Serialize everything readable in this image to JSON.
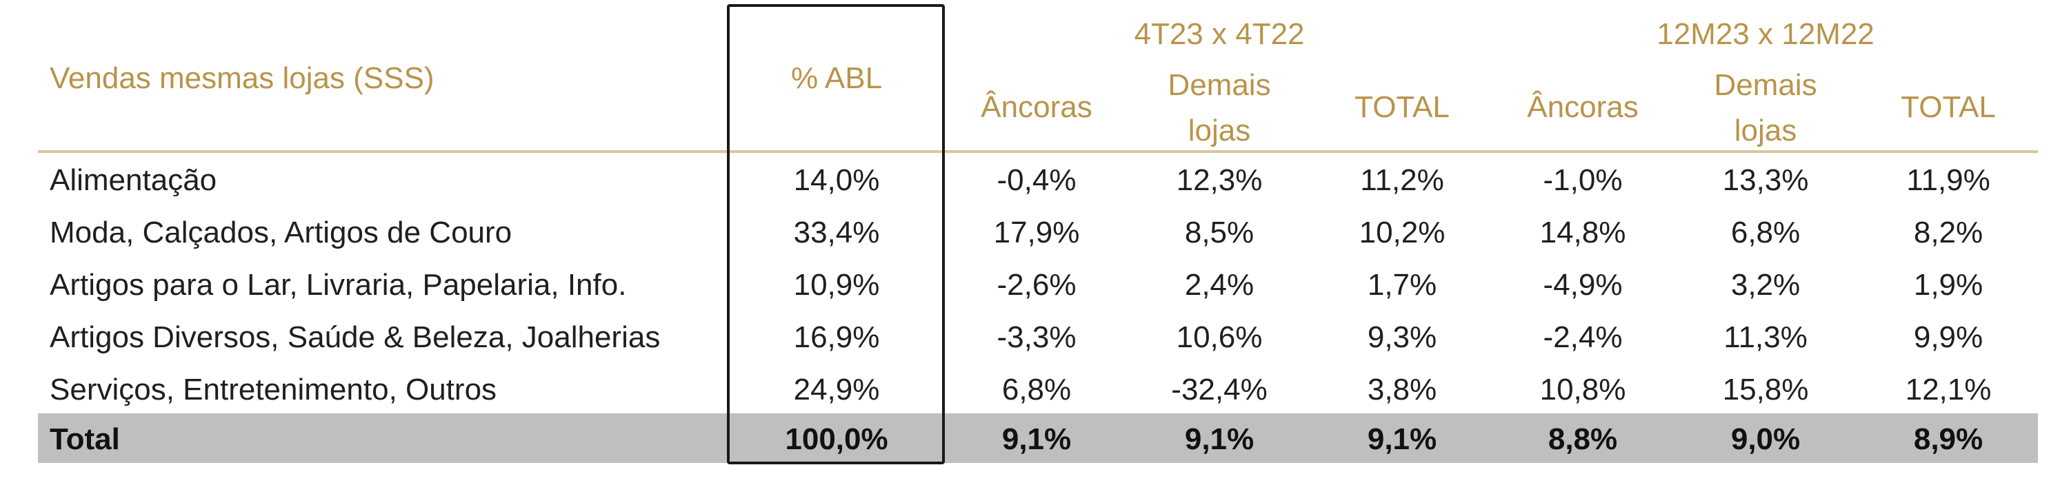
{
  "table": {
    "title": "Vendas mesmas lojas (SSS)",
    "abl_header": "% ABL",
    "group_4t": "4T23 x 4T22",
    "group_12m": "12M23 x 12M22",
    "col_ancoras": "Âncoras",
    "col_demais_1": "Demais",
    "col_demais_2": "lojas",
    "col_total": "TOTAL",
    "rows": [
      {
        "label": "Alimentação",
        "abl": "14,0%",
        "q_ancoras": "-0,4%",
        "q_demais": "12,3%",
        "q_total": "11,2%",
        "y_ancoras": "-1,0%",
        "y_demais": "13,3%",
        "y_total": "11,9%"
      },
      {
        "label": "Moda, Calçados, Artigos de Couro",
        "abl": "33,4%",
        "q_ancoras": "17,9%",
        "q_demais": "8,5%",
        "q_total": "10,2%",
        "y_ancoras": "14,8%",
        "y_demais": "6,8%",
        "y_total": "8,2%"
      },
      {
        "label": "Artigos para o Lar, Livraria, Papelaria, Info.",
        "abl": "10,9%",
        "q_ancoras": "-2,6%",
        "q_demais": "2,4%",
        "q_total": "1,7%",
        "y_ancoras": "-4,9%",
        "y_demais": "3,2%",
        "y_total": "1,9%"
      },
      {
        "label": "Artigos Diversos, Saúde & Beleza, Joalherias",
        "abl": "16,9%",
        "q_ancoras": "-3,3%",
        "q_demais": "10,6%",
        "q_total": "9,3%",
        "y_ancoras": "-2,4%",
        "y_demais": "11,3%",
        "y_total": "9,9%"
      },
      {
        "label": "Serviços, Entretenimento, Outros",
        "abl": "24,9%",
        "q_ancoras": "6,8%",
        "q_demais": "-32,4%",
        "q_total": "3,8%",
        "y_ancoras": "10,8%",
        "y_demais": "15,8%",
        "y_total": "12,1%"
      }
    ],
    "total": {
      "label": "Total",
      "abl": "100,0%",
      "q_ancoras": "9,1%",
      "q_demais": "9,1%",
      "q_total": "9,1%",
      "y_ancoras": "8,8%",
      "y_demais": "9,0%",
      "y_total": "8,9%"
    }
  },
  "colors": {
    "header_text": "#B8944A",
    "rule": "#D9C59A",
    "total_band": "#BFBFBF",
    "box_border": "#1a1a1a"
  }
}
